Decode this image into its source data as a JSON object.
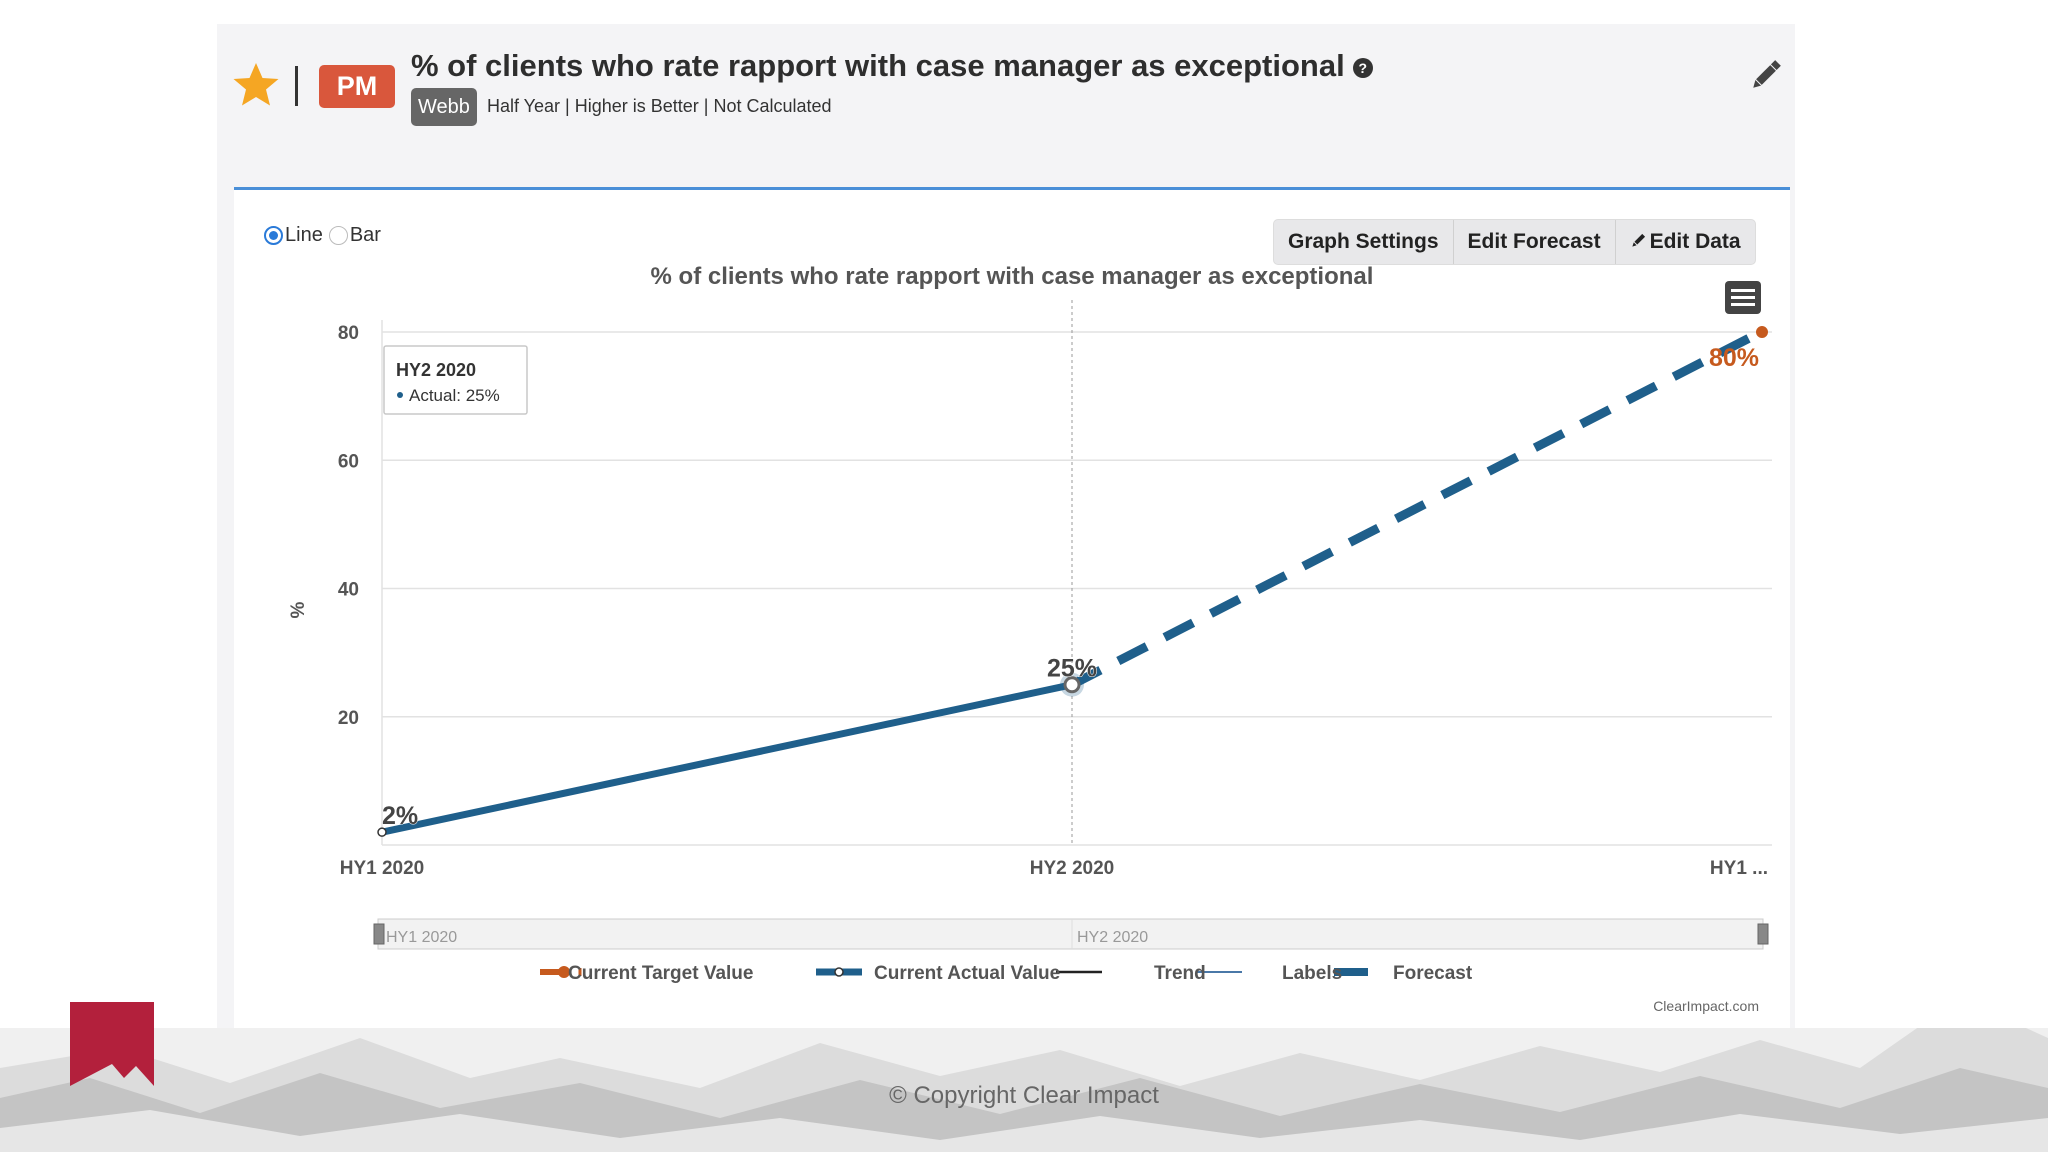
{
  "header": {
    "title": "% of clients who rate rapport with case manager as exceptional",
    "badge": "PM",
    "owner": "Webb",
    "meta": "Half Year | Higher is Better | Not Calculated",
    "help": "?"
  },
  "controls": {
    "chart_types": [
      {
        "label": "Line",
        "selected": true
      },
      {
        "label": "Bar",
        "selected": false
      }
    ],
    "toolbar": {
      "graph_settings": "Graph Settings",
      "edit_forecast": "Edit Forecast",
      "edit_data": "Edit Data"
    }
  },
  "chart_data": {
    "type": "line",
    "title": "% of clients who rate rapport with case manager as exceptional",
    "ylabel": "%",
    "ylim": [
      0,
      85
    ],
    "yticks": [
      20,
      40,
      60,
      80
    ],
    "categories": [
      "HY1 2020",
      "HY2 2020",
      "HY1 ..."
    ],
    "series": [
      {
        "name": "Current Actual Value",
        "values": [
          2,
          25,
          null
        ],
        "labels": [
          "2%",
          "25%",
          ""
        ],
        "color": "#1f5f8b"
      },
      {
        "name": "Forecast",
        "values": [
          null,
          25,
          80
        ],
        "color": "#1f5f8b"
      },
      {
        "name": "Current Target Value",
        "values": [
          null,
          null,
          80
        ],
        "labels": [
          "",
          "",
          "80%"
        ],
        "color": "#c65a1e"
      }
    ],
    "legend": [
      "Current Target Value",
      "Current Actual Value",
      "Trend",
      "Labels",
      "Forecast"
    ],
    "tooltip": {
      "title": "HY2 2020",
      "text": "Actual: 25%"
    },
    "navigator": [
      "HY1 2020",
      "HY2 2020"
    ],
    "credit": "ClearImpact.com",
    "grid": true,
    "legend_position": "bottom"
  },
  "footer": {
    "copyright": "© Copyright Clear Impact"
  },
  "colors": {
    "accent": "#4a8fd8",
    "badge": "#d9573c",
    "star": "#f5a623",
    "series": "#1f5f8b",
    "target": "#c65a1e",
    "logo": "#b3203c"
  }
}
